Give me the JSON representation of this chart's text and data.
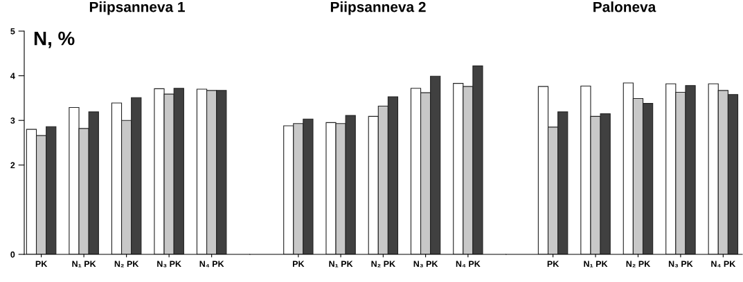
{
  "chart_data": [
    {
      "type": "bar",
      "title": "Piipsanneva 1",
      "ylabel": "N, %",
      "categories": [
        "PK",
        "N₁ PK",
        "N₂ PK",
        "N₃ PK",
        "N₄ PK"
      ],
      "ylim": [
        0,
        5
      ],
      "yticks": [
        0,
        2,
        3,
        4,
        5
      ],
      "grid": false,
      "series": [
        {
          "color": "#ffffff",
          "values": [
            2.8,
            3.29,
            3.39,
            3.71,
            3.7
          ]
        },
        {
          "color": "#c8c8c8",
          "values": [
            2.66,
            2.82,
            3.0,
            3.59,
            3.67
          ]
        },
        {
          "color": "#404040",
          "values": [
            2.86,
            3.19,
            3.51,
            3.72,
            3.67
          ]
        }
      ]
    },
    {
      "type": "bar",
      "title": "Piipsanneva 2",
      "categories": [
        "PK",
        "N₁ PK",
        "N₂ PK",
        "N₃ PK",
        "N₄ PK"
      ],
      "ylim": [
        0,
        5
      ],
      "tick_labels": "x",
      "grid": false,
      "series": [
        {
          "color": "#ffffff",
          "values": [
            2.88,
            2.95,
            3.09,
            3.72,
            3.83
          ]
        },
        {
          "color": "#c8c8c8",
          "values": [
            2.93,
            2.93,
            3.32,
            3.62,
            3.76
          ]
        },
        {
          "color": "#404040",
          "values": [
            3.03,
            3.11,
            3.53,
            3.99,
            4.22
          ]
        }
      ]
    },
    {
      "type": "bar",
      "title": "Paloneva",
      "categories": [
        "PK",
        "N₁ PK",
        "N₂ PK",
        "N₃ PK",
        "N₄ PK"
      ],
      "ylim": [
        0,
        5
      ],
      "tick_labels": "x",
      "grid": false,
      "series": [
        {
          "color": "#ffffff",
          "values": [
            3.76,
            3.77,
            3.84,
            3.82,
            3.82
          ]
        },
        {
          "color": "#c8c8c8",
          "values": [
            2.85,
            3.09,
            3.49,
            3.63,
            3.67
          ]
        },
        {
          "color": "#404040",
          "values": [
            3.19,
            3.15,
            3.38,
            3.78,
            3.58
          ]
        }
      ]
    }
  ]
}
